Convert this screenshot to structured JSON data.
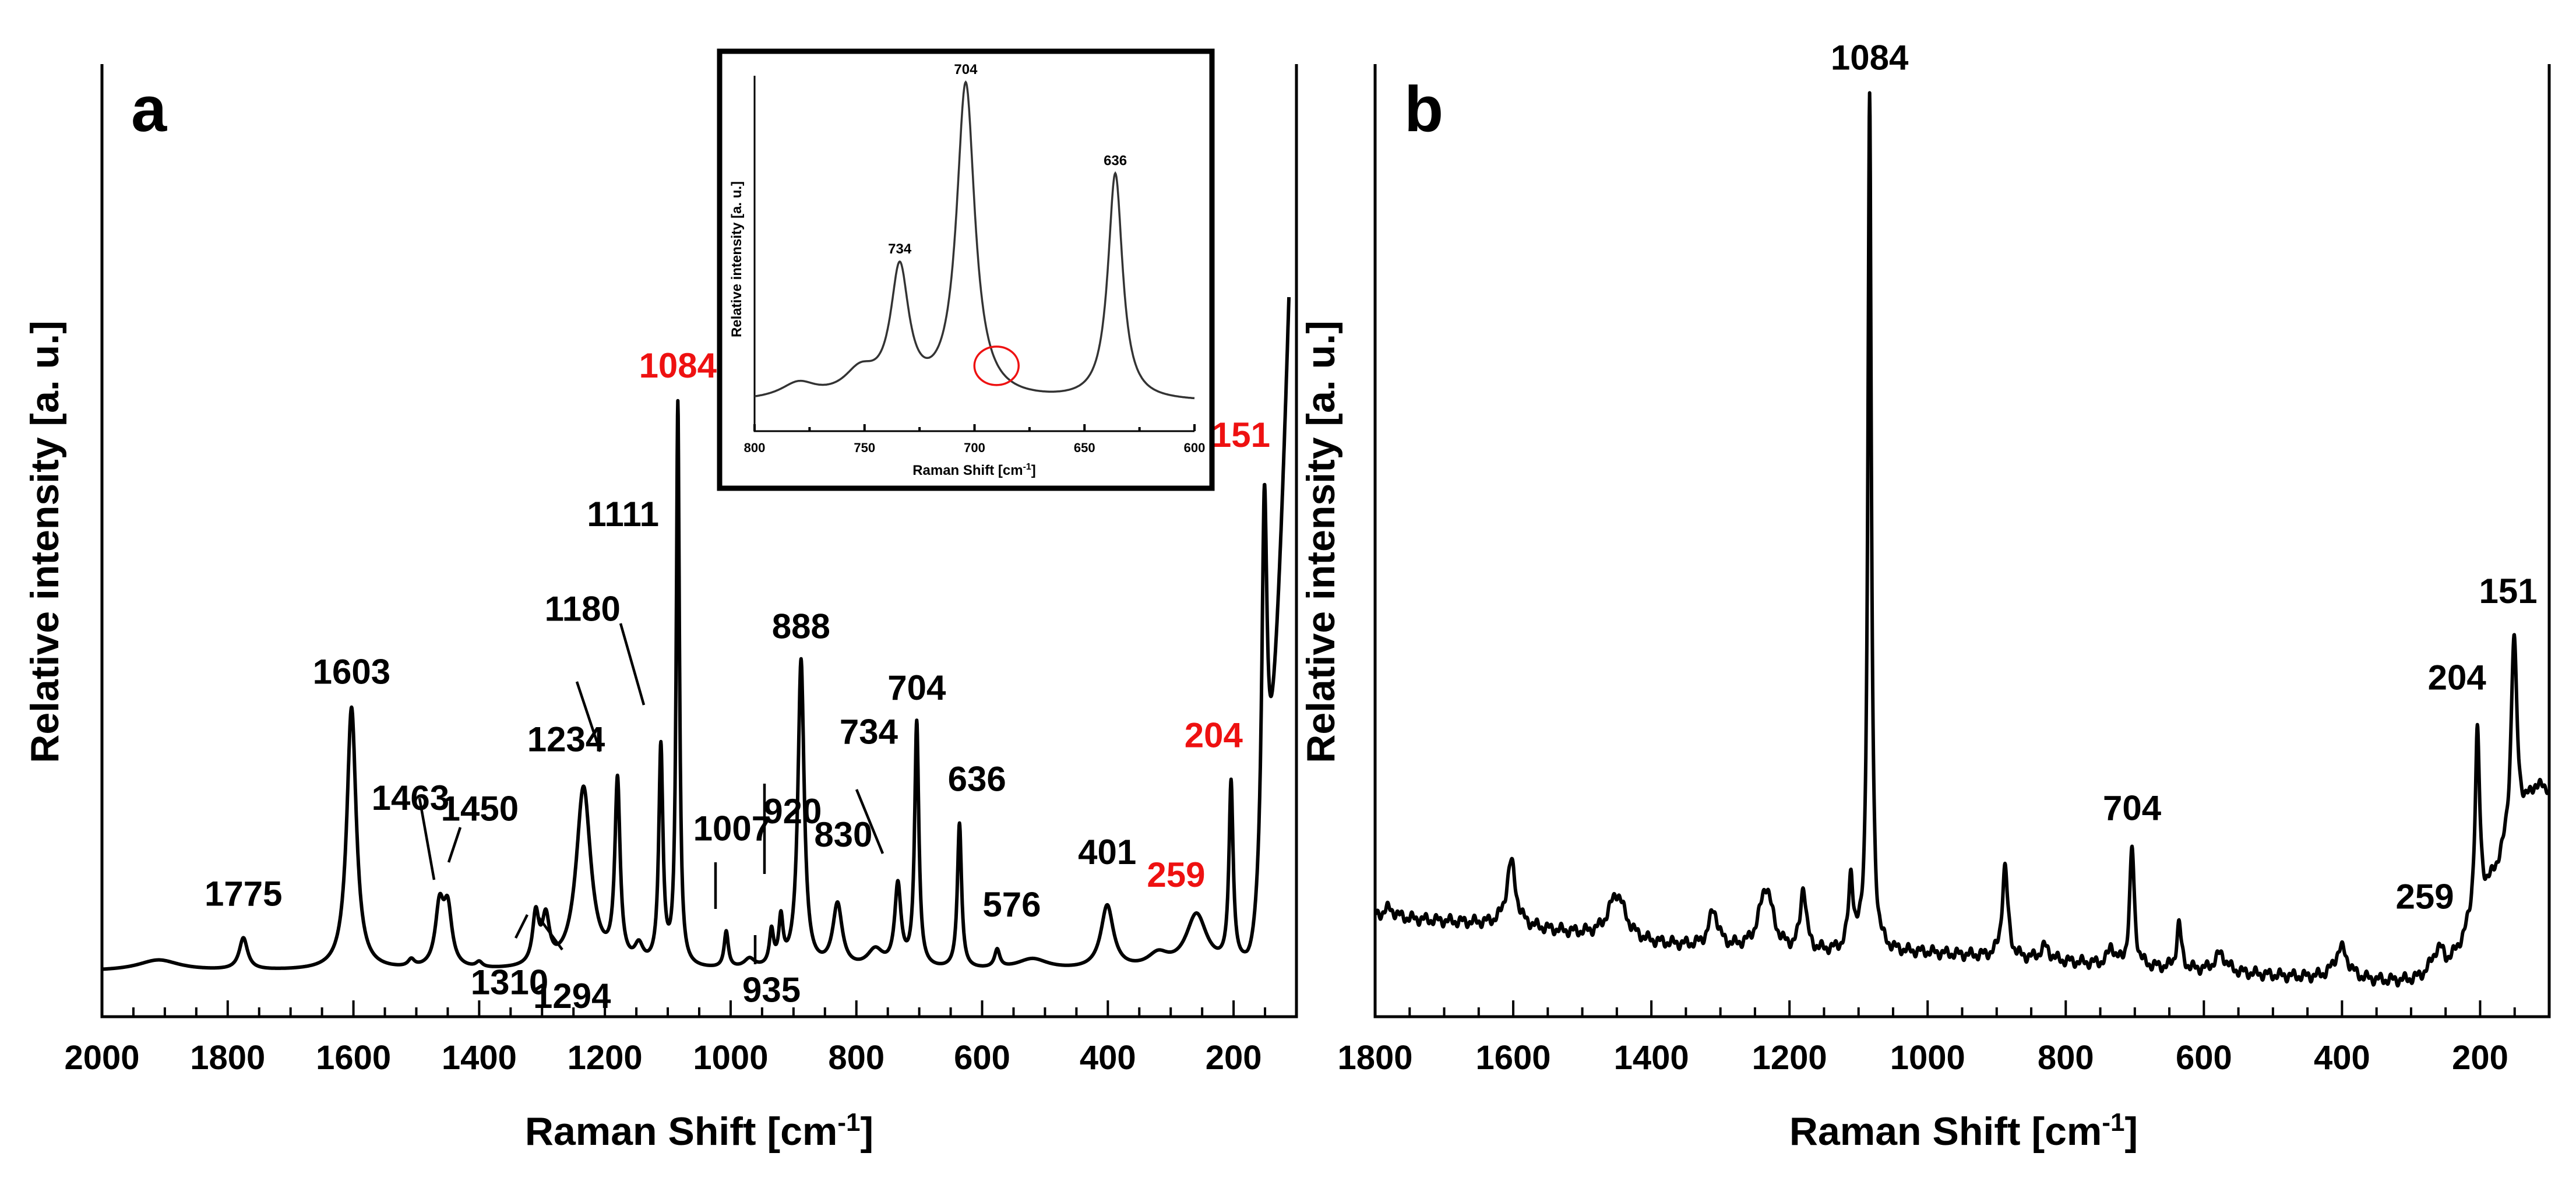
{
  "chart_data": [
    {
      "type": "line",
      "panel": "a",
      "xlabel_main": "Raman Shift [cm",
      "xlabel_sup": "-1",
      "xlabel_end": "]",
      "ylabel": "Relative intensity [a. u.]",
      "xlim": [
        2000,
        100
      ],
      "ylim": [
        -0.05,
        1.0
      ],
      "xticks": [
        2000,
        1800,
        1600,
        1400,
        1200,
        1000,
        800,
        600,
        400,
        200
      ],
      "peaks": [
        {
          "x": 1910,
          "h": 0.012,
          "w": 40
        },
        {
          "x": 1775,
          "h": 0.035,
          "w": 8
        },
        {
          "x": 1603,
          "h": 0.29,
          "w": 9
        },
        {
          "x": 1508,
          "h": 0.008,
          "w": 6
        },
        {
          "x": 1463,
          "h": 0.065,
          "w": 8
        },
        {
          "x": 1450,
          "h": 0.062,
          "w": 8
        },
        {
          "x": 1400,
          "h": 0.006,
          "w": 6
        },
        {
          "x": 1310,
          "h": 0.055,
          "w": 6
        },
        {
          "x": 1294,
          "h": 0.05,
          "w": 7
        },
        {
          "x": 1234,
          "h": 0.2,
          "w": 14
        },
        {
          "x": 1180,
          "h": 0.2,
          "w": 5
        },
        {
          "x": 1146,
          "h": 0.02,
          "w": 8
        },
        {
          "x": 1111,
          "h": 0.24,
          "w": 4
        },
        {
          "x": 1084,
          "h": 0.62,
          "w": 3
        },
        {
          "x": 1007,
          "h": 0.04,
          "w": 4
        },
        {
          "x": 970,
          "h": 0.01,
          "w": 10
        },
        {
          "x": 935,
          "h": 0.038,
          "w": 4
        },
        {
          "x": 920,
          "h": 0.05,
          "w": 4
        },
        {
          "x": 888,
          "h": 0.34,
          "w": 6
        },
        {
          "x": 830,
          "h": 0.07,
          "w": 9
        },
        {
          "x": 770,
          "h": 0.02,
          "w": 15
        },
        {
          "x": 734,
          "h": 0.09,
          "w": 6
        },
        {
          "x": 704,
          "h": 0.27,
          "w": 4
        },
        {
          "x": 636,
          "h": 0.16,
          "w": 4
        },
        {
          "x": 576,
          "h": 0.02,
          "w": 5
        },
        {
          "x": 520,
          "h": 0.012,
          "w": 30
        },
        {
          "x": 401,
          "h": 0.07,
          "w": 12
        },
        {
          "x": 320,
          "h": 0.015,
          "w": 20
        },
        {
          "x": 259,
          "h": 0.06,
          "w": 20
        },
        {
          "x": 204,
          "h": 0.2,
          "w": 4
        },
        {
          "x": 151,
          "h": 0.42,
          "w": 5
        }
      ],
      "baseline": 0.0,
      "rising_edge": {
        "start": 180,
        "end_value": 1.05
      },
      "labels": [
        {
          "x": 1775,
          "text": "1775",
          "color": "black"
        },
        {
          "x": 1603,
          "text": "1603",
          "color": "black"
        },
        {
          "x": 1463,
          "text": "1463",
          "color": "black"
        },
        {
          "x": 1450,
          "text": "1450",
          "color": "black"
        },
        {
          "x": 1310,
          "text": "1310",
          "color": "black"
        },
        {
          "x": 1294,
          "text": "1294",
          "color": "black"
        },
        {
          "x": 1234,
          "text": "1234",
          "color": "black"
        },
        {
          "x": 1180,
          "text": "1180",
          "color": "black"
        },
        {
          "x": 1111,
          "text": "1111",
          "color": "black"
        },
        {
          "x": 1084,
          "text": "1084",
          "color": "red"
        },
        {
          "x": 1007,
          "text": "1007",
          "color": "black"
        },
        {
          "x": 935,
          "text": "935",
          "color": "black"
        },
        {
          "x": 920,
          "text": "920",
          "color": "black"
        },
        {
          "x": 888,
          "text": "888",
          "color": "black"
        },
        {
          "x": 830,
          "text": "830",
          "color": "black"
        },
        {
          "x": 734,
          "text": "734",
          "color": "black"
        },
        {
          "x": 704,
          "text": "704",
          "color": "black"
        },
        {
          "x": 636,
          "text": "636",
          "color": "black"
        },
        {
          "x": 576,
          "text": "576",
          "color": "black"
        },
        {
          "x": 401,
          "text": "401",
          "color": "black"
        },
        {
          "x": 259,
          "text": "259",
          "color": "red"
        },
        {
          "x": 204,
          "text": "204",
          "color": "red"
        },
        {
          "x": 151,
          "text": "151",
          "color": "red"
        }
      ],
      "inset": {
        "type": "line",
        "xlabel_main": "Raman Shift [cm",
        "xlabel_sup": "-1",
        "xlabel_end": "]",
        "ylabel": "Relative intensity [a. u.]",
        "xlim": [
          800,
          600
        ],
        "xticks": [
          800,
          750,
          700,
          650,
          600
        ],
        "peaks": [
          {
            "x": 780,
            "h": 0.05,
            "w": 10
          },
          {
            "x": 752,
            "h": 0.08,
            "w": 9
          },
          {
            "x": 734,
            "h": 0.4,
            "w": 5
          },
          {
            "x": 704,
            "h": 1.0,
            "w": 5
          },
          {
            "x": 636,
            "h": 0.72,
            "w": 4
          }
        ],
        "labels": [
          "734",
          "704",
          "636"
        ],
        "highlight_circle_x": 690
      }
    },
    {
      "type": "line",
      "panel": "b",
      "xlabel_main": "Raman Shift [cm",
      "xlabel_sup": "-1",
      "xlabel_end": "]",
      "ylabel": "Relative intensity [a. u.]",
      "xlim": [
        1800,
        100
      ],
      "ylim": [
        -0.05,
        1.0
      ],
      "xticks": [
        1800,
        1600,
        1400,
        1200,
        1000,
        800,
        600,
        400,
        200
      ],
      "peaks": [
        {
          "x": 1780,
          "h": 0.01,
          "w": 10
        },
        {
          "x": 1603,
          "h": 0.07,
          "w": 8
        },
        {
          "x": 1450,
          "h": 0.05,
          "w": 15
        },
        {
          "x": 1310,
          "h": 0.04,
          "w": 8
        },
        {
          "x": 1234,
          "h": 0.07,
          "w": 12
        },
        {
          "x": 1180,
          "h": 0.07,
          "w": 5
        },
        {
          "x": 1111,
          "h": 0.08,
          "w": 4
        },
        {
          "x": 1084,
          "h": 0.94,
          "w": 3
        },
        {
          "x": 888,
          "h": 0.1,
          "w": 5
        },
        {
          "x": 830,
          "h": 0.015,
          "w": 8
        },
        {
          "x": 734,
          "h": 0.02,
          "w": 5
        },
        {
          "x": 704,
          "h": 0.13,
          "w": 4
        },
        {
          "x": 636,
          "h": 0.05,
          "w": 4
        },
        {
          "x": 576,
          "h": 0.02,
          "w": 10
        },
        {
          "x": 401,
          "h": 0.035,
          "w": 12
        },
        {
          "x": 259,
          "h": 0.04,
          "w": 15
        },
        {
          "x": 204,
          "h": 0.2,
          "w": 4
        },
        {
          "x": 151,
          "h": 0.22,
          "w": 5
        }
      ],
      "baseline_profile": [
        [
          1800,
          0.06
        ],
        [
          1600,
          0.05
        ],
        [
          1400,
          0.03
        ],
        [
          1200,
          0.02
        ],
        [
          1000,
          0.02
        ],
        [
          800,
          0.01
        ],
        [
          600,
          0.0
        ],
        [
          400,
          -0.01
        ],
        [
          250,
          -0.015
        ],
        [
          120,
          0.2
        ]
      ],
      "labels": [
        {
          "x": 1084,
          "text": "1084"
        },
        {
          "x": 704,
          "text": "704"
        },
        {
          "x": 259,
          "text": "259"
        },
        {
          "x": 204,
          "text": "204"
        },
        {
          "x": 151,
          "text": "151"
        }
      ]
    }
  ]
}
